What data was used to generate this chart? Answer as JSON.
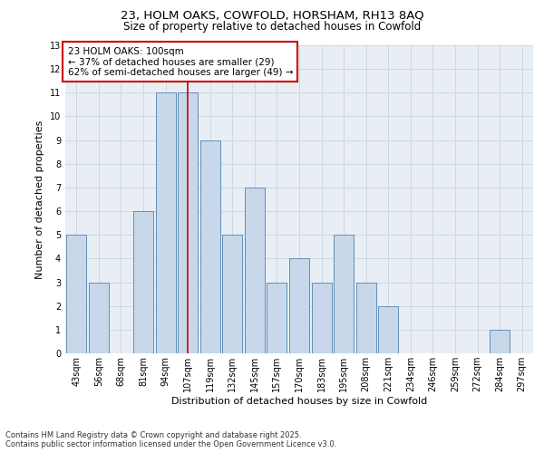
{
  "title_line1": "23, HOLM OAKS, COWFOLD, HORSHAM, RH13 8AQ",
  "title_line2": "Size of property relative to detached houses in Cowfold",
  "xlabel": "Distribution of detached houses by size in Cowfold",
  "ylabel": "Number of detached properties",
  "categories": [
    "43sqm",
    "56sqm",
    "68sqm",
    "81sqm",
    "94sqm",
    "107sqm",
    "119sqm",
    "132sqm",
    "145sqm",
    "157sqm",
    "170sqm",
    "183sqm",
    "195sqm",
    "208sqm",
    "221sqm",
    "234sqm",
    "246sqm",
    "259sqm",
    "272sqm",
    "284sqm",
    "297sqm"
  ],
  "values": [
    5,
    3,
    0,
    6,
    11,
    11,
    9,
    5,
    7,
    3,
    4,
    3,
    5,
    3,
    2,
    0,
    0,
    0,
    0,
    1,
    0
  ],
  "bar_color": "#c8d8ea",
  "bar_edge_color": "#6090b8",
  "highlight_bar_index": 5,
  "highlight_line_color": "#cc0000",
  "annotation_text": "23 HOLM OAKS: 100sqm\n← 37% of detached houses are smaller (29)\n62% of semi-detached houses are larger (49) →",
  "annotation_box_color": "#ffffff",
  "annotation_box_edge_color": "#cc0000",
  "ylim": [
    0,
    13
  ],
  "yticks": [
    0,
    1,
    2,
    3,
    4,
    5,
    6,
    7,
    8,
    9,
    10,
    11,
    12,
    13
  ],
  "grid_color": "#c8d4dc",
  "background_color": "#e8eef4",
  "footer_text": "Contains HM Land Registry data © Crown copyright and database right 2025.\nContains public sector information licensed under the Open Government Licence v3.0.",
  "title_fontsize": 9.5,
  "subtitle_fontsize": 8.5,
  "axis_label_fontsize": 8,
  "tick_fontsize": 7,
  "annotation_fontsize": 7.5,
  "footer_fontsize": 6
}
